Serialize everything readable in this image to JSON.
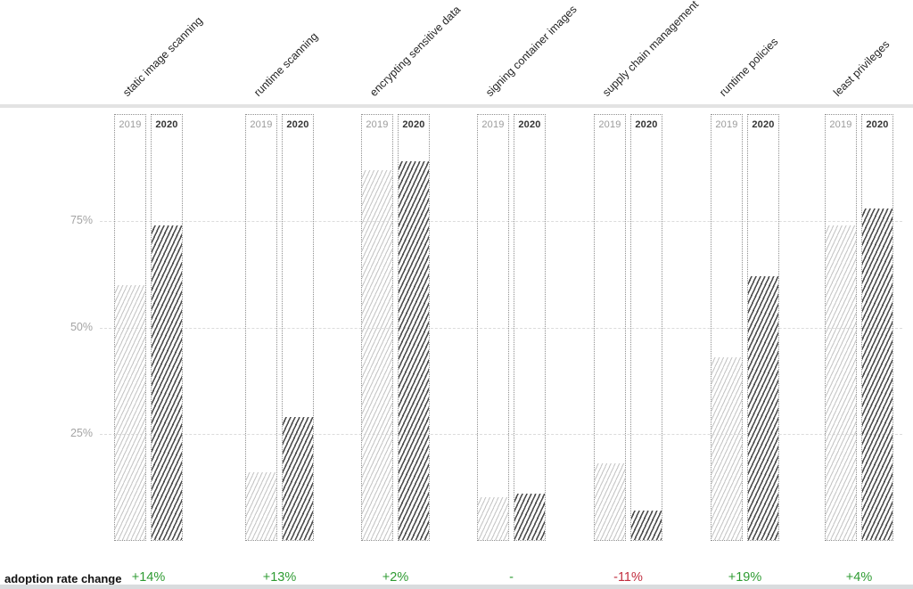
{
  "chart_data": {
    "type": "bar",
    "title": "",
    "categories": [
      "static image scanning",
      "runtime scanning",
      "encrypting sensitive data",
      "signing container images",
      "supply chain management",
      "runtime policies",
      "least privileges"
    ],
    "series": [
      {
        "name": "2019",
        "values": [
          60,
          16,
          87,
          10,
          18,
          43,
          74
        ]
      },
      {
        "name": "2020",
        "values": [
          74,
          29,
          89,
          11,
          7,
          62,
          78
        ]
      }
    ],
    "adoption_rate_change": [
      "+14%",
      "+13%",
      "+2%",
      "-",
      "-11%",
      "+19%",
      "+4%"
    ],
    "y_ticks": [
      {
        "label": "75%",
        "value": 75
      },
      {
        "label": "50%",
        "value": 50
      },
      {
        "label": "25%",
        "value": 25
      }
    ],
    "ylim": [
      0,
      100
    ],
    "grid": "dashed horizontal lines at 25/50/75",
    "legend_position": "year labels inside each column header"
  },
  "footer": {
    "row_label": "adoption rate change"
  },
  "colors": {
    "positive_change": "#2e9b32",
    "negative_change": "#c22f40",
    "hatch_2019": "#c7c7c7",
    "hatch_2020": "#4d4d4d",
    "year_2019_text": "#9b9b9b",
    "year_2020_text": "#333333",
    "divider": "#e3e3e3",
    "axis_text": "#a4a4a4"
  }
}
